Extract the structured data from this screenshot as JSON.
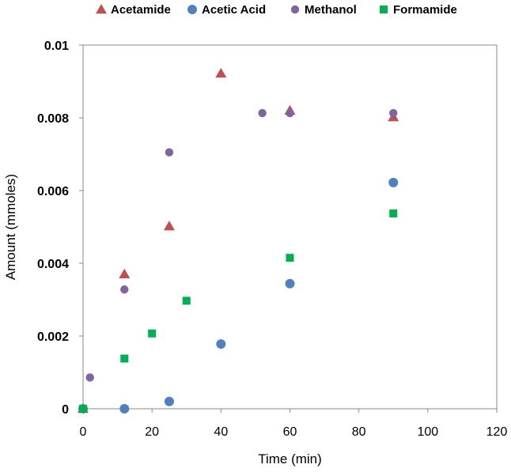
{
  "chart_data": {
    "type": "scatter",
    "title": "",
    "xlabel": "Time (min)",
    "ylabel": "Amount (mmoles)",
    "xlim": [
      0,
      120
    ],
    "ylim": [
      0,
      0.01
    ],
    "xticks": [
      0,
      20,
      40,
      60,
      80,
      100,
      120
    ],
    "yticks": [
      0,
      0.002,
      0.004,
      0.006,
      0.008,
      0.01
    ],
    "xtick_labels": [
      "0",
      "20",
      "40",
      "60",
      "80",
      "100",
      "120"
    ],
    "ytick_labels": [
      "0",
      "0.002",
      "0.004",
      "0.006",
      "0.008",
      "0.01"
    ],
    "grid": false,
    "legend_position": "top",
    "series": [
      {
        "name": "Acetamide",
        "marker": "triangle",
        "color": "#c0504d",
        "points": [
          [
            0,
            0
          ],
          [
            12,
            0.0037
          ],
          [
            25,
            0.00502
          ],
          [
            40,
            0.00922
          ],
          [
            60,
            0.0082
          ],
          [
            90,
            0.00802
          ]
        ]
      },
      {
        "name": "Acetic Acid",
        "marker": "circle",
        "color": "#4f81bd",
        "points": [
          [
            0,
            0
          ],
          [
            12,
            0
          ],
          [
            25,
            0.0002
          ],
          [
            40,
            0.00178
          ],
          [
            60,
            0.00344
          ],
          [
            90,
            0.00622
          ]
        ]
      },
      {
        "name": "Methanol",
        "marker": "circle-small",
        "color": "#8064a2",
        "points": [
          [
            2,
            0.00086
          ],
          [
            12,
            0.00328
          ],
          [
            25,
            0.00705
          ],
          [
            52,
            0.00813
          ],
          [
            60,
            0.00813
          ],
          [
            90,
            0.00813
          ]
        ]
      },
      {
        "name": "Formamide",
        "marker": "square",
        "color": "#00b050",
        "points": [
          [
            0,
            0
          ],
          [
            12,
            0.00138
          ],
          [
            20,
            0.00207
          ],
          [
            30,
            0.00297
          ],
          [
            60,
            0.00415
          ],
          [
            90,
            0.00537
          ]
        ]
      }
    ]
  }
}
